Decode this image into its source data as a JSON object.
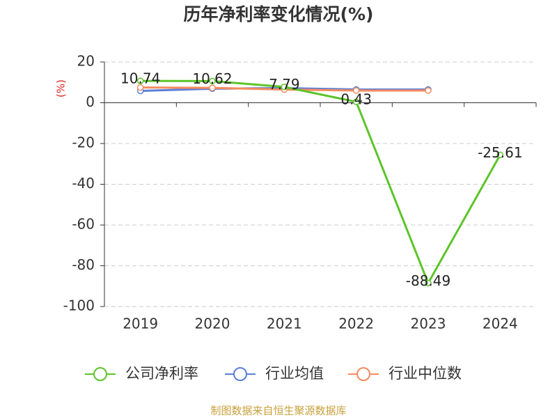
{
  "chart_data": {
    "type": "line",
    "title": "历年净利率变化情况(%)",
    "y_label": "(%)",
    "categories": [
      "2019",
      "2020",
      "2021",
      "2022",
      "2023",
      "2024"
    ],
    "series": [
      {
        "name": "公司净利率",
        "color": "#5cc429",
        "values": [
          10.74,
          10.62,
          7.79,
          0.43,
          -88.49,
          -25.61
        ],
        "show_labels": true
      },
      {
        "name": "行业均值",
        "color": "#5b7fd8",
        "values": [
          5.8,
          6.9,
          7.2,
          6.5,
          6.5,
          null
        ],
        "show_labels": false
      },
      {
        "name": "行业中位数",
        "color": "#f58b5f",
        "values": [
          7.5,
          7.3,
          6.5,
          6.0,
          6.0,
          null
        ],
        "show_labels": false
      }
    ],
    "ylim": [
      -100,
      20
    ],
    "yticks": [
      -100,
      -80,
      -60,
      -40,
      -20,
      0,
      20
    ],
    "grid": true,
    "source": "制图数据来自恒生聚源数据库"
  }
}
